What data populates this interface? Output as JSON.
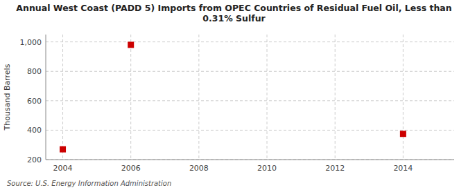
{
  "chart_data": {
    "type": "scatter",
    "title": "Annual West Coast (PADD 5) Imports from OPEC Countries of Residual Fuel Oil, Less than\n0.31% Sulfur",
    "ylabel": "Thousand Barrels",
    "source": "Source: U.S. Energy Information Administration",
    "x": [
      2004,
      2006,
      2014
    ],
    "values": [
      270,
      980,
      375
    ],
    "color": "#CC0000",
    "marker": "square",
    "xlim": [
      2003.5,
      2015.5
    ],
    "ylim": [
      200,
      1050
    ],
    "xticks": [
      2004,
      2006,
      2008,
      2010,
      2012,
      2014
    ],
    "yticks": [
      200,
      400,
      600,
      800,
      {
        "value": 1000,
        "label": "1,000"
      }
    ],
    "grid": true
  }
}
